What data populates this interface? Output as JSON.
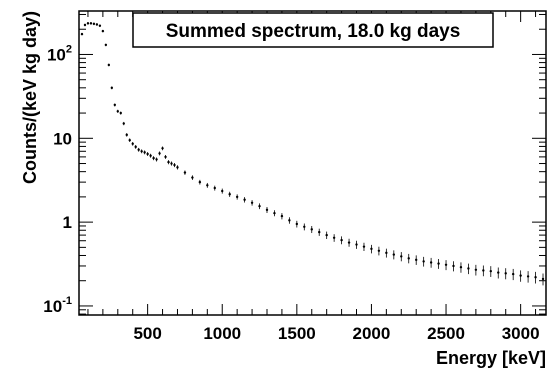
{
  "chart_data": {
    "type": "scatter",
    "title": "Summed spectrum, 18.0 kg days",
    "xlabel": "Energy [keV]",
    "ylabel": "Counts/(keV kg day)",
    "xlim": [
      40,
      3170
    ],
    "ylim": [
      0.078,
      330
    ],
    "yscale": "log",
    "grid": false,
    "error_bars": true,
    "x_ticks": [
      500,
      1000,
      1500,
      2000,
      2500,
      3000
    ],
    "x_tick_labels": [
      "500",
      "1000",
      "1500",
      "2000",
      "2500",
      "3000"
    ],
    "y_ticks": [
      0.1,
      1,
      10,
      100
    ],
    "y_tick_labels": [
      {
        "base": "10",
        "exp": "-1",
        "value": 0.1
      },
      {
        "base": "1",
        "exp": "",
        "value": 1
      },
      {
        "base": "10",
        "exp": "",
        "value": 10
      },
      {
        "base": "10",
        "exp": "2",
        "value": 100
      }
    ],
    "series": [
      {
        "x": [
          60,
          80,
          100,
          120,
          140,
          160,
          180,
          200,
          220,
          240,
          260,
          280,
          300,
          320,
          340,
          360,
          380,
          400,
          420,
          440,
          460,
          480,
          500,
          520,
          540,
          560,
          580,
          600,
          620,
          640,
          660,
          680,
          700,
          750,
          800,
          850,
          900,
          950,
          1000,
          1050,
          1100,
          1150,
          1200,
          1250,
          1300,
          1350,
          1400,
          1450,
          1500,
          1550,
          1600,
          1650,
          1700,
          1750,
          1800,
          1850,
          1900,
          1950,
          2000,
          2050,
          2100,
          2150,
          2200,
          2250,
          2300,
          2350,
          2400,
          2450,
          2500,
          2550,
          2600,
          2650,
          2700,
          2750,
          2800,
          2850,
          2900,
          2950,
          3000,
          3050,
          3100,
          3150
        ],
        "y": [
          175,
          225,
          235,
          235,
          232,
          228,
          220,
          190,
          130,
          75,
          40,
          25,
          21,
          20,
          15,
          11,
          9.5,
          8.6,
          7.9,
          7.3,
          7.0,
          6.8,
          6.5,
          6.2,
          5.8,
          5.6,
          6.6,
          7.6,
          6.0,
          5.2,
          5.0,
          4.8,
          4.5,
          3.9,
          3.4,
          3.0,
          2.75,
          2.55,
          2.35,
          2.15,
          2.0,
          1.85,
          1.7,
          1.55,
          1.4,
          1.28,
          1.18,
          1.05,
          0.95,
          0.88,
          0.82,
          0.76,
          0.7,
          0.65,
          0.61,
          0.57,
          0.54,
          0.51,
          0.48,
          0.455,
          0.43,
          0.41,
          0.39,
          0.37,
          0.355,
          0.34,
          0.33,
          0.32,
          0.31,
          0.3,
          0.29,
          0.28,
          0.27,
          0.265,
          0.26,
          0.25,
          0.245,
          0.24,
          0.23,
          0.225,
          0.22,
          0.21
        ]
      }
    ],
    "colors": {
      "marker": "#000000",
      "axis": "#000000",
      "background": "#ffffff"
    }
  }
}
